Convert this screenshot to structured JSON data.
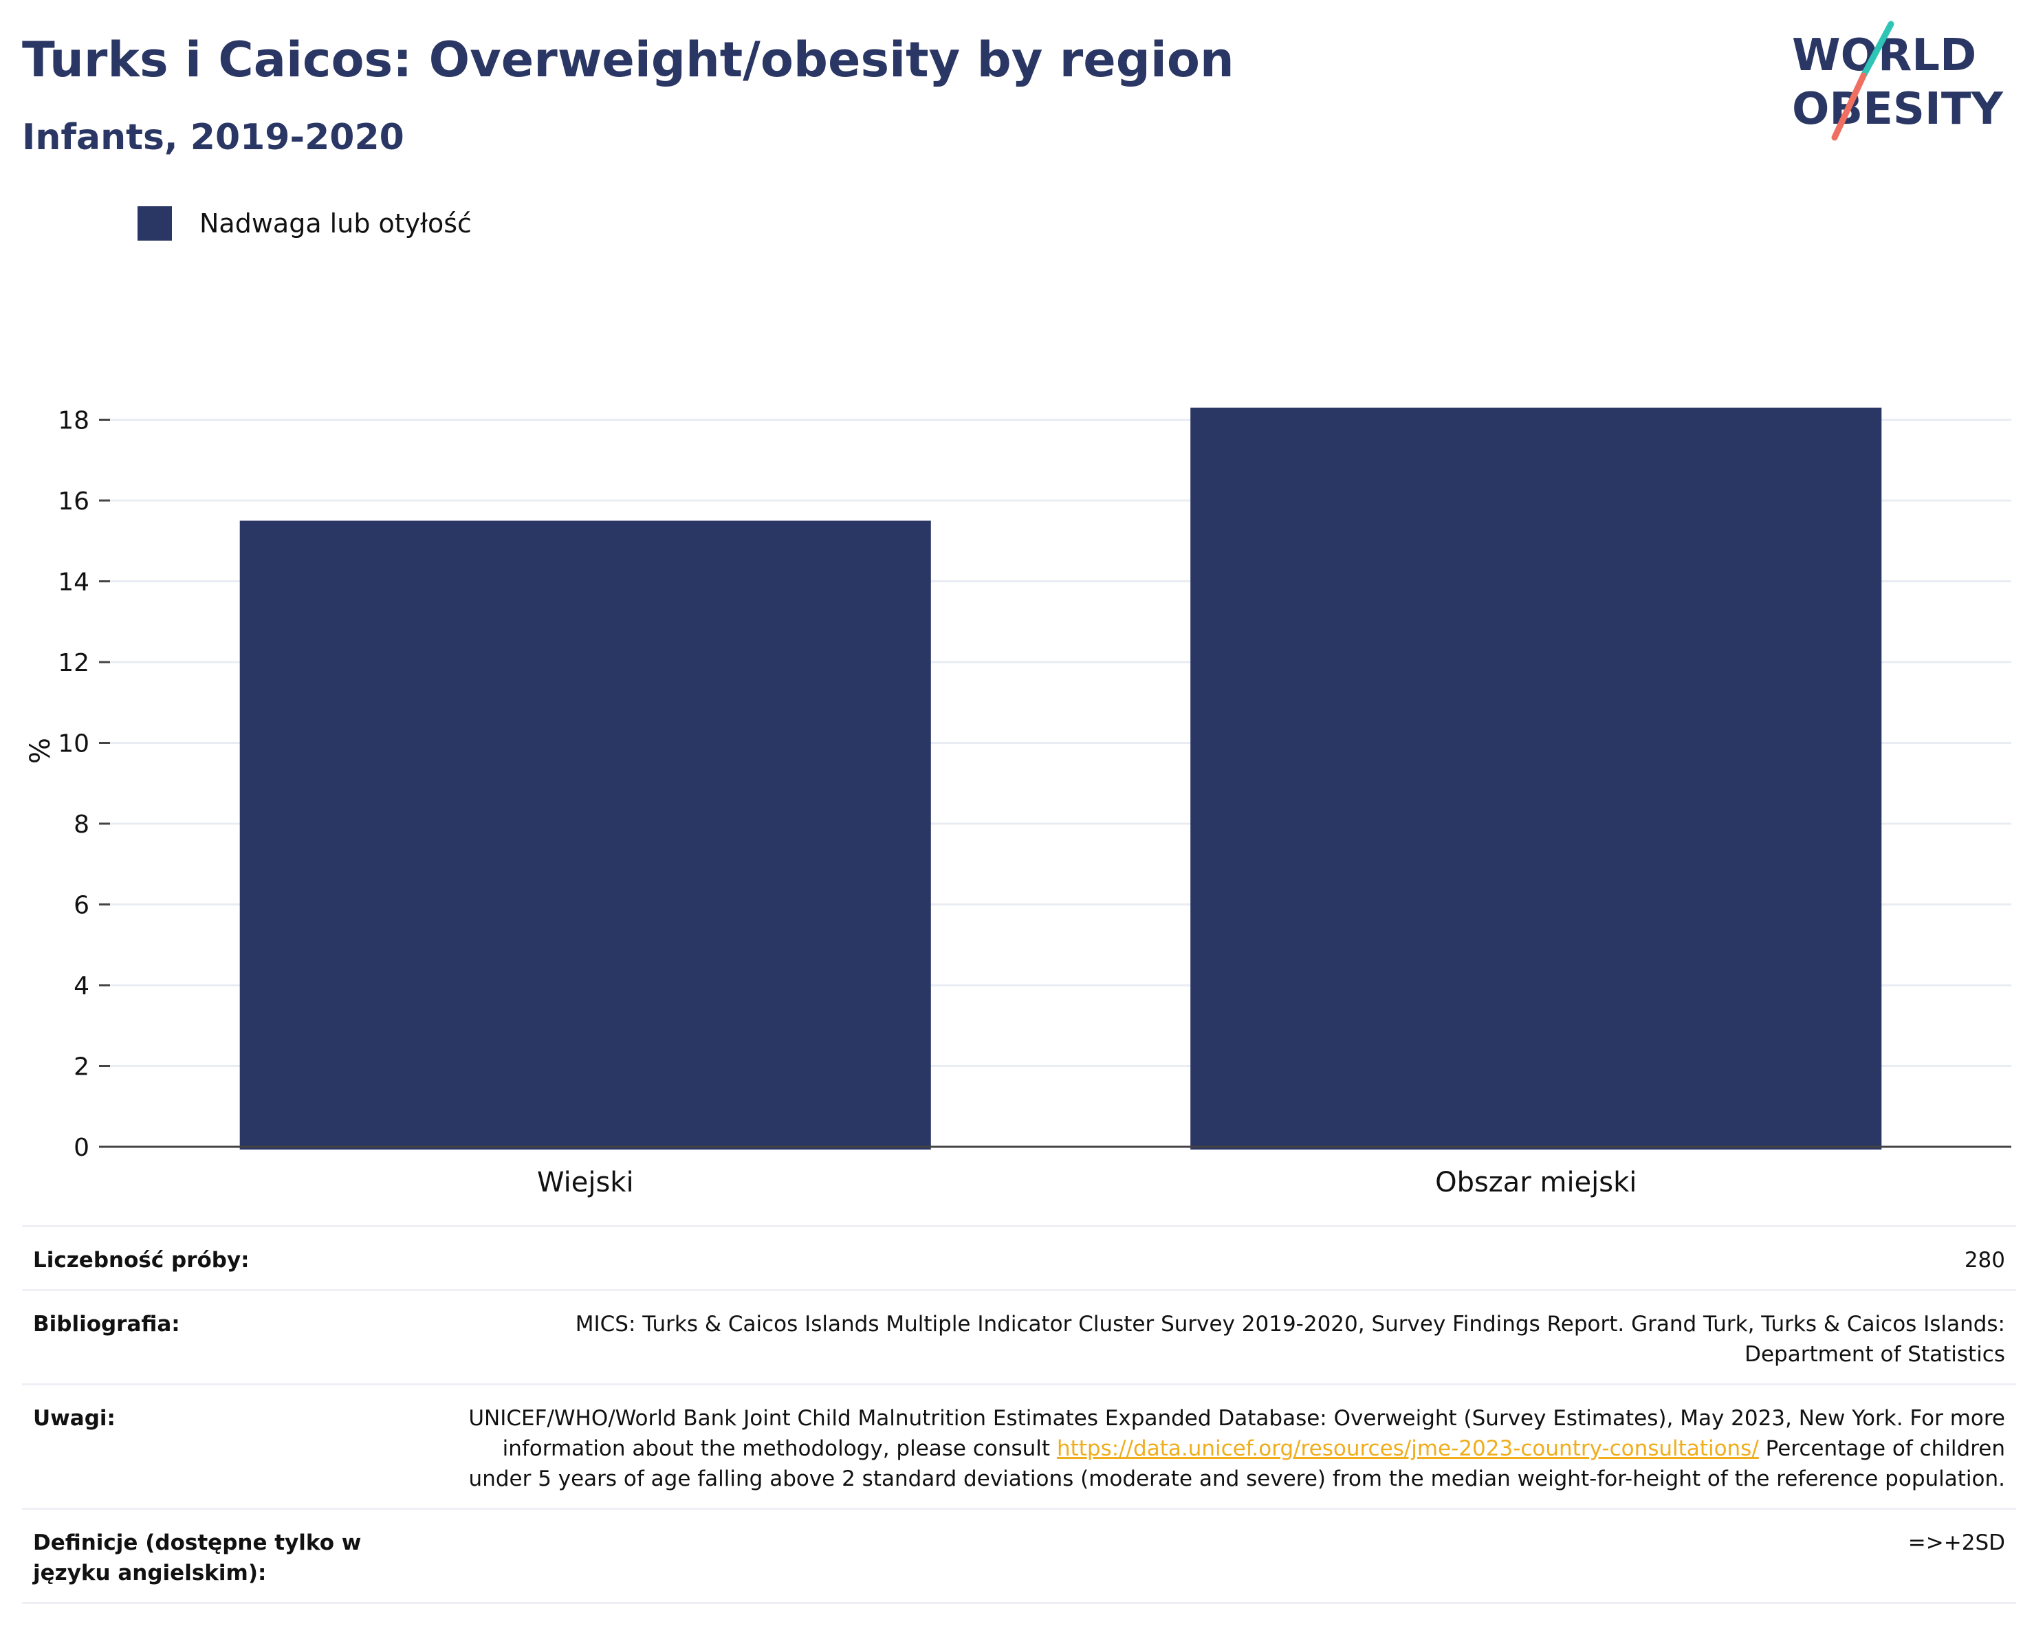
{
  "header": {
    "title": "Turks i Caicos: Overweight/obesity by region",
    "subtitle": "Infants, 2019-2020"
  },
  "logo": {
    "line1": "WORLD",
    "line2": "OBESITY",
    "colors": {
      "text": "#2a3663",
      "slash_top": "#2ec4b6",
      "slash_bottom": "#ef6f61"
    }
  },
  "legend": {
    "label": "Nadwaga lub otyłość",
    "color": "#2a3663"
  },
  "chart_data": {
    "type": "bar",
    "categories": [
      "Wiejski",
      "Obszar miejski"
    ],
    "series": [
      {
        "name": "Nadwaga lub otyłość",
        "values": [
          15.5,
          18.3
        ],
        "color": "#2a3663"
      }
    ],
    "ylabel": "%",
    "xlabel": "",
    "ylim": [
      0,
      19.2
    ],
    "yticks": [
      0,
      2,
      4,
      6,
      8,
      10,
      12,
      14,
      16,
      18
    ],
    "grid": true,
    "legend_position": "top-left"
  },
  "info": {
    "sample_label": "Liczebność próby:",
    "sample_value": "280",
    "bibliography_label": "Bibliografia:",
    "bibliography_value": "MICS: Turks & Caicos Islands Multiple Indicator Cluster Survey 2019-2020, Survey Findings Report. Grand Turk, Turks & Caicos Islands: Department of Statistics",
    "notes_label": "Uwagi:",
    "notes_text_before": "UNICEF/WHO/World Bank Joint Child Malnutrition Estimates Expanded Database: Overweight (Survey Estimates), May 2023, New York. For more information about the methodology, please consult ",
    "notes_link": "https://data.unicef.org/resources/jme-2023-country-consultations/",
    "notes_text_after": " Percentage of children under 5 years of age falling above 2 standard deviations (moderate and severe) from the median weight-for-height of the reference population.",
    "definitions_label": "Definicje (dostępne tylko w języku angielskim):",
    "definitions_value": "=>+2SD"
  }
}
